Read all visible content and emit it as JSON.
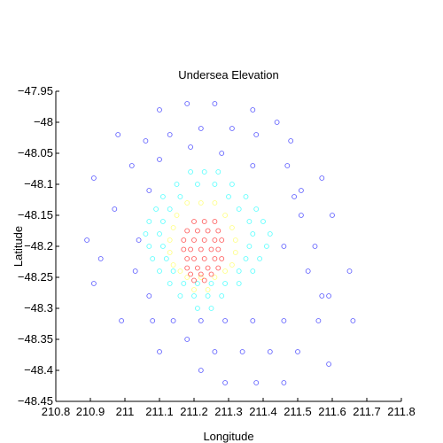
{
  "chart_data": {
    "type": "scatter",
    "title": "Undersea Elevation",
    "xlabel": "Longitude",
    "ylabel": "Latitude",
    "xlim": [
      210.8,
      211.8
    ],
    "ylim": [
      -48.45,
      -47.95
    ],
    "xticks": [
      "210.8",
      "210.9",
      "211",
      "211.1",
      "211.2",
      "211.3",
      "211.4",
      "211.5",
      "211.6",
      "211.7",
      "211.8"
    ],
    "yticks": [
      "-47.95",
      "-48",
      "-48.05",
      "-48.1",
      "-48.15",
      "-48.2",
      "-48.25",
      "-48.3",
      "-48.35",
      "-48.4",
      "-48.45"
    ],
    "marker": "circle-open",
    "grid": false,
    "colors": {
      "deep": "#5a5aff",
      "mid": "#55ffff",
      "shallow": "#ffff80",
      "peak": "#ff5555"
    },
    "series": [
      {
        "level": "deep",
        "x": [
          211.18,
          211.26,
          211.1,
          211.37,
          210.98,
          211.13,
          211.22,
          211.31,
          211.44,
          211.06,
          211.19,
          211.38,
          211.48,
          211.1,
          211.28,
          211.02,
          211.37,
          211.47,
          210.91,
          211.07,
          211.57,
          211.51,
          211.49,
          211.6,
          210.97,
          211.04,
          211.51,
          210.89,
          211.46,
          211.55,
          210.93,
          211.03,
          211.53,
          211.65,
          210.91,
          211.07,
          211.57,
          211.59,
          210.99,
          211.08,
          211.14,
          211.22,
          211.29,
          211.37,
          211.46,
          211.56,
          211.66,
          211.18,
          211.1,
          211.26,
          211.34,
          211.42,
          211.5,
          211.22,
          211.59,
          211.29,
          211.38,
          211.46
        ],
        "y": [
          -47.97,
          -47.97,
          -47.98,
          -47.98,
          -48.02,
          -48.02,
          -48.01,
          -48.01,
          -48.0,
          -48.03,
          -48.04,
          -48.02,
          -48.03,
          -48.06,
          -48.05,
          -48.07,
          -48.07,
          -48.07,
          -48.09,
          -48.11,
          -48.09,
          -48.11,
          -48.12,
          -48.15,
          -48.14,
          -48.19,
          -48.15,
          -48.19,
          -48.2,
          -48.2,
          -48.22,
          -48.24,
          -48.24,
          -48.24,
          -48.26,
          -48.28,
          -48.28,
          -48.28,
          -48.32,
          -48.32,
          -48.32,
          -48.32,
          -48.32,
          -48.32,
          -48.32,
          -48.32,
          -48.32,
          -48.35,
          -48.37,
          -48.37,
          -48.37,
          -48.37,
          -48.37,
          -48.4,
          -48.39,
          -48.42,
          -48.42,
          -48.42
        ]
      },
      {
        "level": "mid",
        "x": [
          211.19,
          211.23,
          211.27,
          211.15,
          211.21,
          211.26,
          211.31,
          211.11,
          211.16,
          211.3,
          211.35,
          211.09,
          211.13,
          211.33,
          211.38,
          211.07,
          211.11,
          211.36,
          211.4,
          211.06,
          211.1,
          211.37,
          211.42,
          211.07,
          211.11,
          211.36,
          211.41,
          211.08,
          211.12,
          211.35,
          211.39,
          211.1,
          211.14,
          211.33,
          211.37,
          211.13,
          211.17,
          211.21,
          211.25,
          211.29,
          211.33,
          211.16,
          211.2,
          211.24,
          211.28,
          211.21,
          211.25
        ],
        "y": [
          -48.08,
          -48.08,
          -48.08,
          -48.1,
          -48.1,
          -48.1,
          -48.1,
          -48.12,
          -48.12,
          -48.12,
          -48.12,
          -48.14,
          -48.14,
          -48.14,
          -48.14,
          -48.16,
          -48.16,
          -48.16,
          -48.16,
          -48.18,
          -48.18,
          -48.18,
          -48.18,
          -48.2,
          -48.2,
          -48.2,
          -48.2,
          -48.22,
          -48.22,
          -48.22,
          -48.22,
          -48.24,
          -48.24,
          -48.24,
          -48.24,
          -48.26,
          -48.26,
          -48.26,
          -48.26,
          -48.26,
          -48.26,
          -48.28,
          -48.28,
          -48.28,
          -48.28,
          -48.3,
          -48.3
        ]
      },
      {
        "level": "shallow",
        "x": [
          211.18,
          211.22,
          211.26,
          211.15,
          211.29,
          211.14,
          211.31,
          211.13,
          211.32,
          211.13,
          211.32,
          211.14,
          211.31,
          211.16,
          211.29,
          211.18,
          211.22,
          211.26,
          211.2,
          211.24
        ],
        "y": [
          -48.13,
          -48.13,
          -48.13,
          -48.15,
          -48.15,
          -48.17,
          -48.17,
          -48.19,
          -48.19,
          -48.21,
          -48.21,
          -48.23,
          -48.23,
          -48.24,
          -48.24,
          -48.25,
          -48.25,
          -48.25,
          -48.27,
          -48.27
        ]
      },
      {
        "level": "peak",
        "x": [
          211.2,
          211.23,
          211.26,
          211.18,
          211.21,
          211.24,
          211.27,
          211.17,
          211.2,
          211.23,
          211.26,
          211.28,
          211.17,
          211.19,
          211.22,
          211.25,
          211.27,
          211.18,
          211.2,
          211.23,
          211.26,
          211.28,
          211.18,
          211.21,
          211.24,
          211.27,
          211.19,
          211.22,
          211.25,
          211.2,
          211.23
        ],
        "y": [
          -48.16,
          -48.16,
          -48.16,
          -48.175,
          -48.175,
          -48.175,
          -48.175,
          -48.19,
          -48.19,
          -48.19,
          -48.19,
          -48.19,
          -48.205,
          -48.205,
          -48.205,
          -48.205,
          -48.205,
          -48.22,
          -48.22,
          -48.22,
          -48.22,
          -48.22,
          -48.235,
          -48.235,
          -48.235,
          -48.235,
          -48.245,
          -48.245,
          -48.245,
          -48.255,
          -48.255
        ]
      }
    ]
  }
}
